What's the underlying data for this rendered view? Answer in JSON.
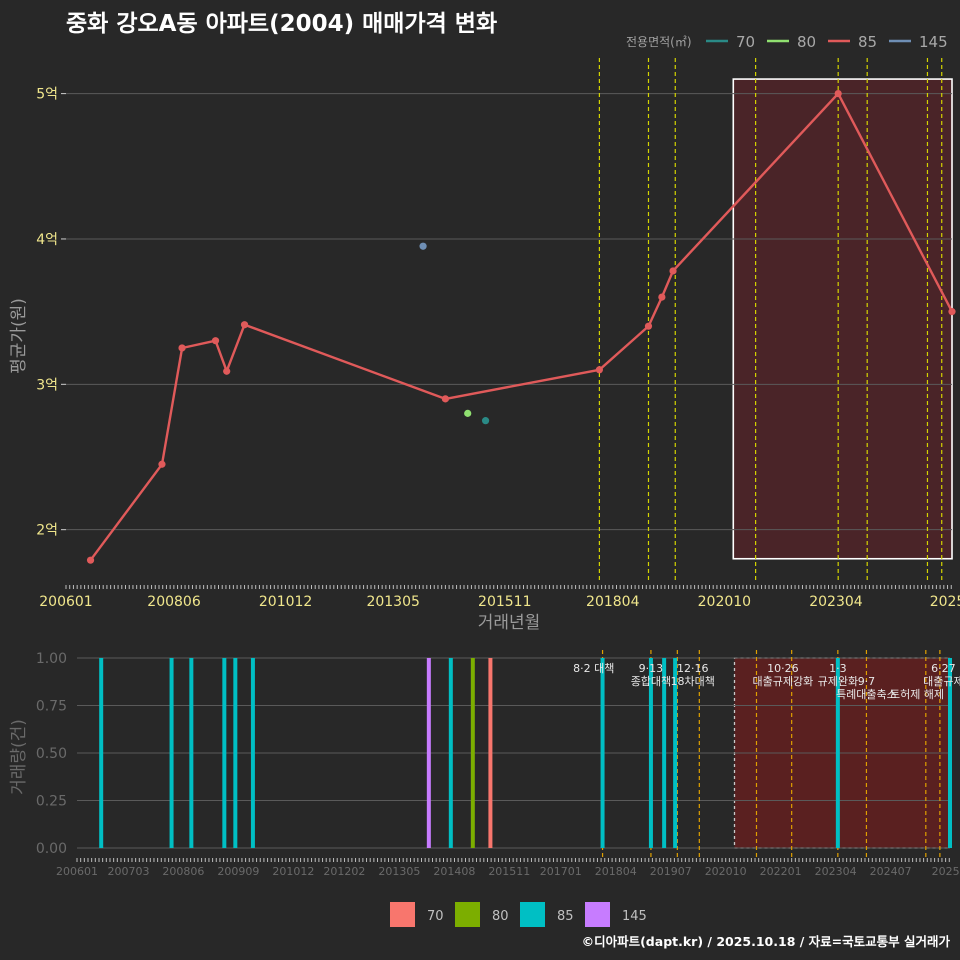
{
  "title": "중화 강오A동 아파트(2004) 매매가격 변화",
  "footer": "©디아파트(dapt.kr) / 2025.10.18 / 자료=국토교통부 실거래가",
  "colors": {
    "background": "#282828",
    "grid": "#5a5a5a",
    "main_line": "#e05a5a",
    "area70": "#2a8a86",
    "area80": "#90e070",
    "area85": "#e05a5a",
    "area145": "#6f8fb5",
    "bar70": "#f8766d",
    "bar80": "#7cae00",
    "bar85": "#00bfc4",
    "bar145": "#c77cff",
    "event_line": "#d4d400",
    "highlight_fill": "#4a2428",
    "lower_highlight_fill": "#5a2020"
  },
  "chart_data": [
    {
      "type": "line",
      "name": "price",
      "xlabel": "거래년월",
      "ylabel": "평균가(원)",
      "xlim": [
        2006.0,
        2025.85
      ],
      "ylim": [
        1.64,
        5.3
      ],
      "xticks": [
        {
          "label": "200601",
          "t": 2006.0
        },
        {
          "label": "200806",
          "t": 2008.42
        },
        {
          "label": "201012",
          "t": 2010.92
        },
        {
          "label": "201305",
          "t": 2013.33
        },
        {
          "label": "201511",
          "t": 2015.83
        },
        {
          "label": "201804",
          "t": 2018.25
        },
        {
          "label": "202010",
          "t": 2020.75
        },
        {
          "label": "202304",
          "t": 2023.25
        },
        {
          "label": "2025",
          "t": 2025.75
        }
      ],
      "yticks": [
        {
          "label": "2억",
          "v": 2
        },
        {
          "label": "3억",
          "v": 3
        },
        {
          "label": "4억",
          "v": 4
        },
        {
          "label": "5억",
          "v": 5
        }
      ],
      "legend_title": "전용면적(㎡)",
      "legend": [
        {
          "label": "70",
          "color": "#2a8a86"
        },
        {
          "label": "80",
          "color": "#90e070"
        },
        {
          "label": "85",
          "color": "#e05a5a"
        },
        {
          "label": "145",
          "color": "#6f8fb5"
        }
      ],
      "series": [
        {
          "name": "85",
          "color": "#e05a5a",
          "line": true,
          "points": [
            [
              2006.55,
              1.79
            ],
            [
              2008.15,
              2.45
            ],
            [
              2008.6,
              3.25
            ],
            [
              2009.35,
              3.3
            ],
            [
              2009.6,
              3.09
            ],
            [
              2010.0,
              3.41
            ],
            [
              2014.5,
              2.9
            ],
            [
              2017.95,
              3.1
            ],
            [
              2019.05,
              3.4
            ],
            [
              2019.35,
              3.6
            ],
            [
              2019.6,
              3.78
            ],
            [
              2023.3,
              5.0
            ],
            [
              2025.85,
              3.5
            ]
          ]
        },
        {
          "name": "145",
          "color": "#6f8fb5",
          "line": false,
          "points": [
            [
              2014.0,
              3.95
            ]
          ]
        },
        {
          "name": "80",
          "color": "#90e070",
          "line": false,
          "points": [
            [
              2015.0,
              2.8
            ]
          ]
        },
        {
          "name": "70",
          "color": "#2a8a86",
          "line": false,
          "points": [
            [
              2015.4,
              2.75
            ]
          ]
        }
      ],
      "event_lines": [
        2017.95,
        2019.05,
        2019.65,
        2021.45,
        2023.3,
        2023.95,
        2025.3,
        2025.62
      ],
      "highlight_range": {
        "x": [
          2020.95,
          2025.85
        ],
        "y": [
          1.8,
          5.1
        ]
      }
    },
    {
      "type": "bar",
      "name": "volume",
      "xlabel": "",
      "ylabel": "거래량(건)",
      "xlim": [
        2006.0,
        2025.85
      ],
      "ylim": [
        0,
        1.0
      ],
      "xticks": [
        {
          "label": "200601",
          "t": 2006.0
        },
        {
          "label": "200703",
          "t": 2007.17
        },
        {
          "label": "200806",
          "t": 2008.42
        },
        {
          "label": "200909",
          "t": 2009.67
        },
        {
          "label": "201012",
          "t": 2010.92
        },
        {
          "label": "201202",
          "t": 2012.08
        },
        {
          "label": "201305",
          "t": 2013.33
        },
        {
          "label": "201408",
          "t": 2014.58
        },
        {
          "label": "201511",
          "t": 2015.83
        },
        {
          "label": "201701",
          "t": 2017.0
        },
        {
          "label": "201804",
          "t": 2018.25
        },
        {
          "label": "201907",
          "t": 2019.5
        },
        {
          "label": "202010",
          "t": 2020.75
        },
        {
          "label": "202201",
          "t": 2022.0
        },
        {
          "label": "202304",
          "t": 2023.25
        },
        {
          "label": "202407",
          "t": 2024.5
        },
        {
          "label": "2025",
          "t": 2025.75
        }
      ],
      "yticks": [
        {
          "label": "0.00",
          "v": 0
        },
        {
          "label": "0.25",
          "v": 0.25
        },
        {
          "label": "0.50",
          "v": 0.5
        },
        {
          "label": "0.75",
          "v": 0.75
        },
        {
          "label": "1.00",
          "v": 1.0
        }
      ],
      "legend": [
        {
          "label": "70",
          "color": "#f8766d"
        },
        {
          "label": "80",
          "color": "#7cae00"
        },
        {
          "label": "85",
          "color": "#00bfc4"
        },
        {
          "label": "145",
          "color": "#c77cff"
        }
      ],
      "bars": [
        {
          "t": 2006.55,
          "v": 1,
          "series": "85"
        },
        {
          "t": 2008.15,
          "v": 1,
          "series": "85"
        },
        {
          "t": 2008.6,
          "v": 1,
          "series": "85"
        },
        {
          "t": 2009.35,
          "v": 1,
          "series": "85"
        },
        {
          "t": 2009.6,
          "v": 1,
          "series": "85"
        },
        {
          "t": 2010.0,
          "v": 1,
          "series": "85"
        },
        {
          "t": 2014.0,
          "v": 1,
          "series": "145"
        },
        {
          "t": 2014.5,
          "v": 1,
          "series": "85"
        },
        {
          "t": 2015.0,
          "v": 1,
          "series": "80"
        },
        {
          "t": 2015.4,
          "v": 1,
          "series": "70"
        },
        {
          "t": 2017.95,
          "v": 1,
          "series": "85"
        },
        {
          "t": 2019.05,
          "v": 1,
          "series": "85"
        },
        {
          "t": 2019.35,
          "v": 1,
          "series": "85"
        },
        {
          "t": 2019.6,
          "v": 1,
          "series": "85"
        },
        {
          "t": 2023.3,
          "v": 1,
          "series": "85"
        },
        {
          "t": 2025.85,
          "v": 1,
          "series": "85"
        }
      ],
      "event_lines": [
        2017.95,
        2019.05,
        2019.65,
        2020.15,
        2021.45,
        2022.25,
        2023.3,
        2023.95,
        2025.3,
        2025.62
      ],
      "events": [
        {
          "t": 2017.75,
          "lines": [
            "8·2 대책"
          ]
        },
        {
          "t": 2019.05,
          "lines": [
            "9·13",
            "종합대책"
          ]
        },
        {
          "t": 2020.0,
          "lines": [
            "12·16",
            "18차대책"
          ]
        },
        {
          "t": 2022.05,
          "lines": [
            "10·26",
            "대출규제강화"
          ]
        },
        {
          "t": 2023.3,
          "lines": [
            "1·3",
            "규제완화"
          ]
        },
        {
          "t": 2023.95,
          "lines": [
            "",
            "9·7",
            "특례대출축소"
          ]
        },
        {
          "t": 2025.1,
          "lines": [
            "",
            "",
            "토허제 해제"
          ]
        },
        {
          "t": 2025.7,
          "lines": [
            "6·27",
            "대출규제"
          ]
        }
      ],
      "highlight_range": {
        "x": [
          2020.95,
          2025.85
        ]
      }
    }
  ]
}
